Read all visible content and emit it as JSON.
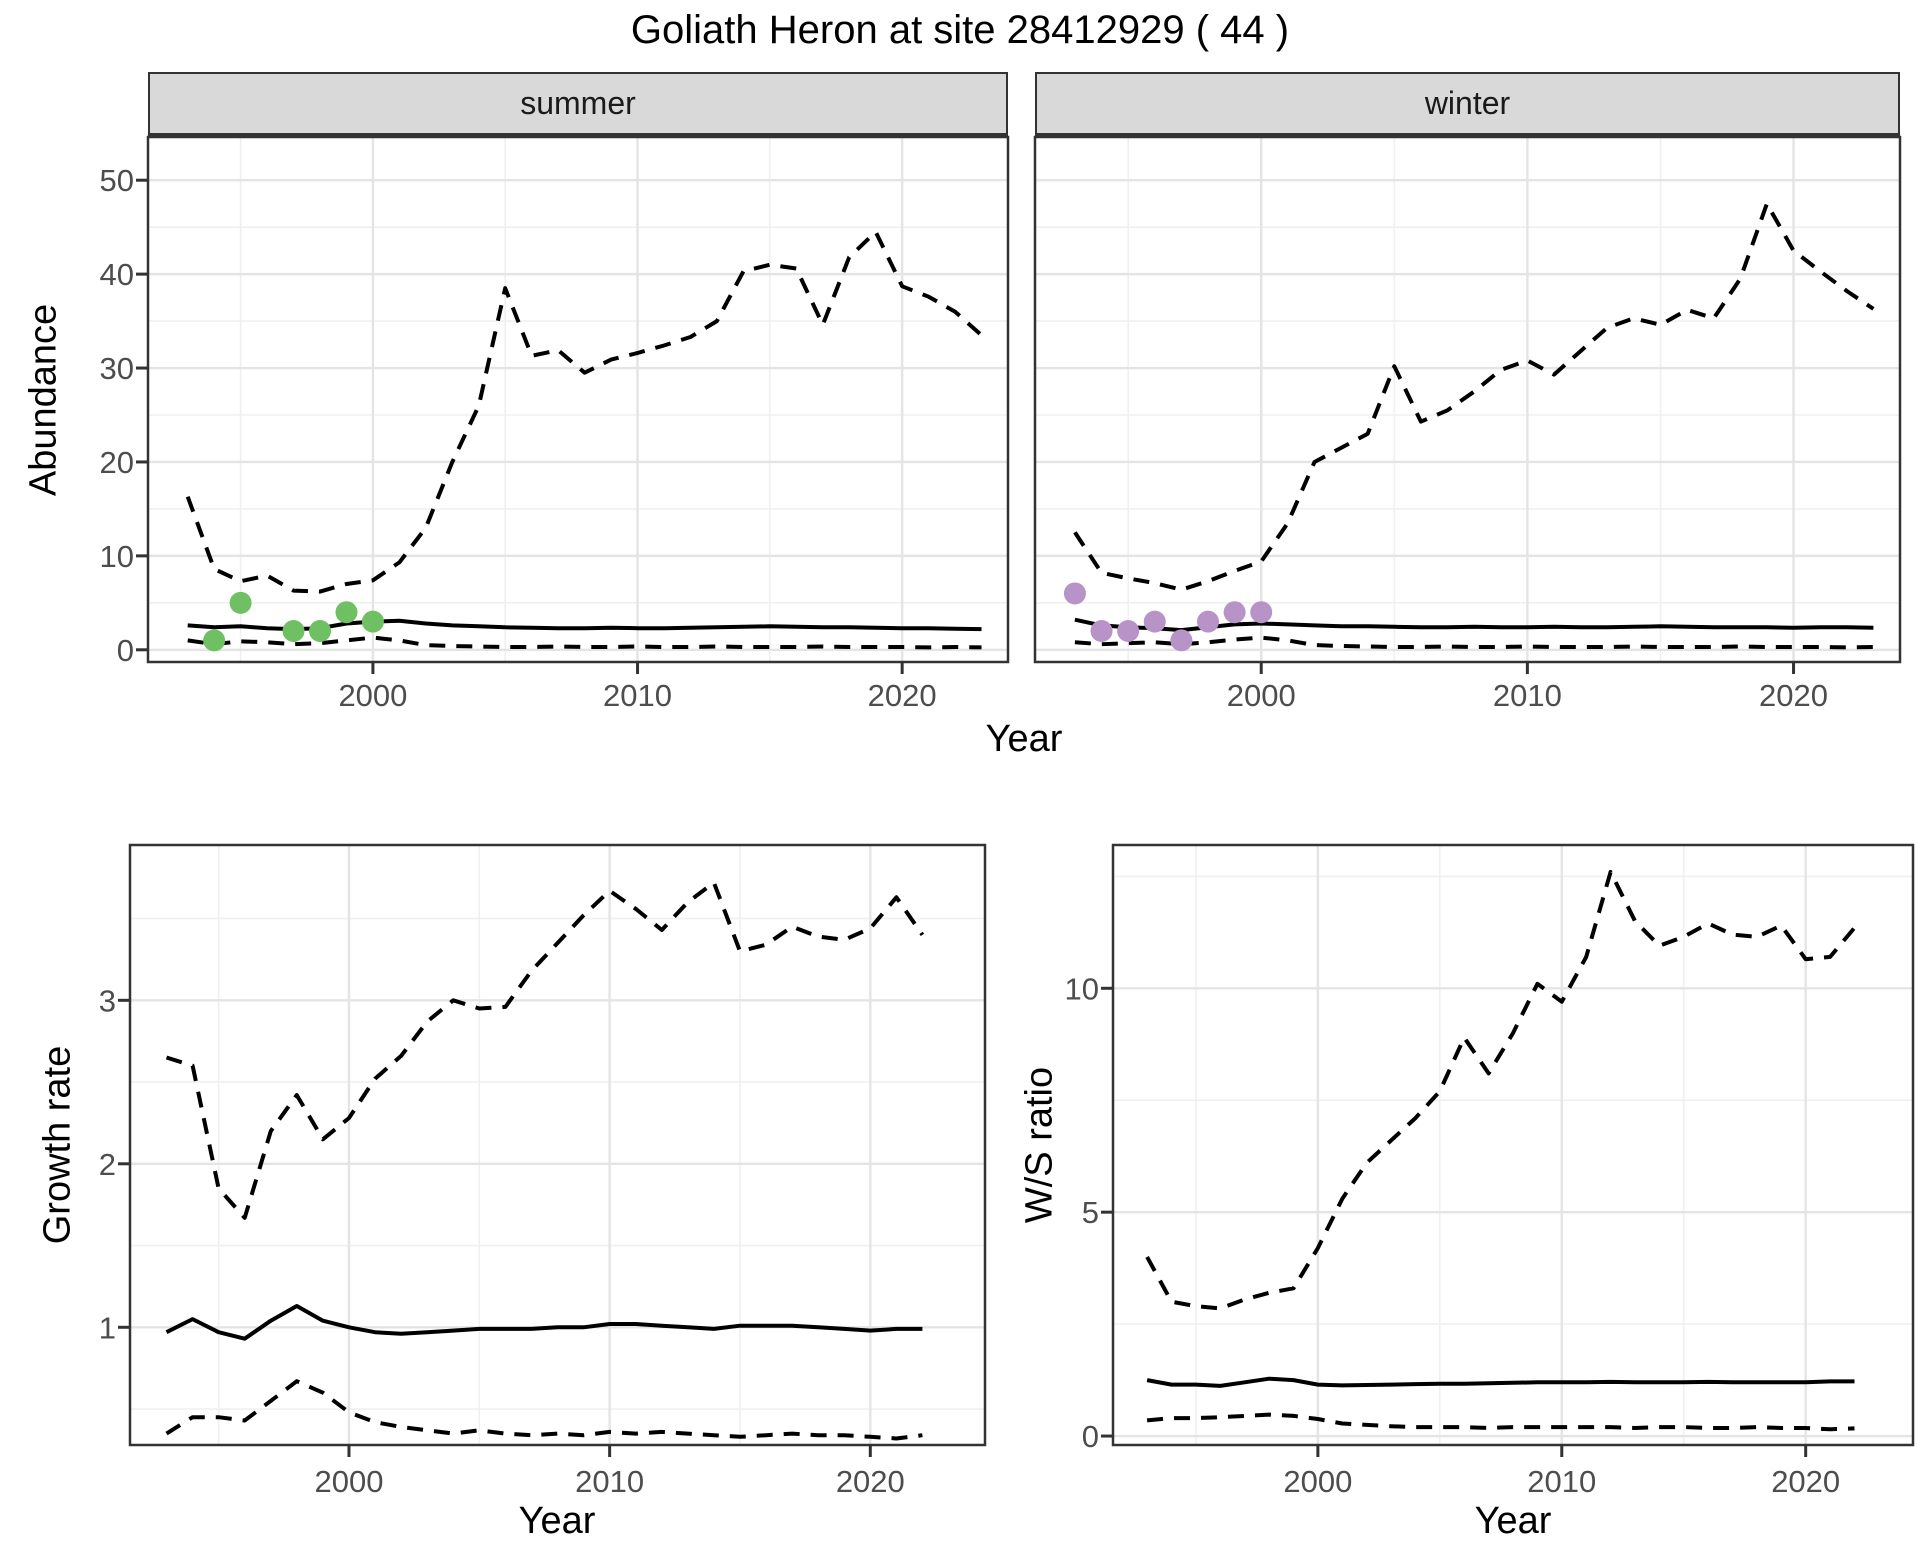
{
  "title": "Goliath Heron at site 28412929 ( 44 )",
  "facets": [
    "summer",
    "winter"
  ],
  "labels": {
    "abundance": "Abundance",
    "year": "Year",
    "growth": "Growth rate",
    "ws": "W/S ratio"
  },
  "colors": {
    "observation_summer": "#6fbf63",
    "observation_winter": "#b793c8",
    "line": "#000000",
    "strip_bg": "#d9d9d9",
    "grid_major": "#e4e4e4",
    "grid_minor": "#f0f0f0",
    "panel_border": "#333333",
    "tick_text": "#4d4d4d"
  },
  "chart_data": [
    {
      "id": "abundance-summer",
      "type": "line",
      "facet_label": "summer",
      "ylabel": "Abundance",
      "xlabel": "Year",
      "xlim": [
        1991.5,
        2024.0
      ],
      "ylim": [
        -1.3,
        54.6
      ],
      "x": [
        1993,
        1994,
        1995,
        1996,
        1997,
        1998,
        1999,
        2000,
        2001,
        2002,
        2003,
        2004,
        2005,
        2006,
        2007,
        2008,
        2009,
        2010,
        2011,
        2012,
        2013,
        2014,
        2015,
        2016,
        2017,
        2018,
        2019,
        2020,
        2021,
        2022,
        2023
      ],
      "series": [
        {
          "name": "upper_ci",
          "style": "dashed",
          "values": [
            16.3,
            8.6,
            7.3,
            7.9,
            6.3,
            6.2,
            7.0,
            7.4,
            9.3,
            13.0,
            20.0,
            26.0,
            38.5,
            31.3,
            31.9,
            29.5,
            30.9,
            31.6,
            32.4,
            33.3,
            35.0,
            40.3,
            41.0,
            40.6,
            34.6,
            41.8,
            44.5,
            38.7,
            37.6,
            36.0,
            33.5
          ]
        },
        {
          "name": "median",
          "style": "solid",
          "values": [
            2.6,
            2.4,
            2.5,
            2.3,
            2.2,
            2.3,
            2.8,
            3.0,
            3.1,
            2.8,
            2.6,
            2.5,
            2.4,
            2.35,
            2.3,
            2.3,
            2.35,
            2.3,
            2.3,
            2.35,
            2.4,
            2.45,
            2.5,
            2.45,
            2.4,
            2.4,
            2.35,
            2.3,
            2.3,
            2.25,
            2.2
          ]
        },
        {
          "name": "lower_ci",
          "style": "dashed",
          "values": [
            1.0,
            0.6,
            0.9,
            0.8,
            0.6,
            0.7,
            1.0,
            1.3,
            1.0,
            0.5,
            0.4,
            0.35,
            0.3,
            0.3,
            0.35,
            0.3,
            0.3,
            0.35,
            0.3,
            0.3,
            0.35,
            0.3,
            0.3,
            0.3,
            0.35,
            0.3,
            0.3,
            0.3,
            0.25,
            0.3,
            0.25
          ]
        }
      ],
      "points": {
        "name": "observations-summer",
        "color": "#6fbf63",
        "x": [
          1994,
          1995,
          1997,
          1998,
          1999,
          2000
        ],
        "y": [
          1,
          5,
          2,
          2,
          4,
          3
        ]
      },
      "x_ticks": {
        "major": [
          2000,
          2010,
          2020
        ],
        "minor": [
          1995,
          2005,
          2015
        ],
        "labels": [
          "2000",
          "2010",
          "2020"
        ]
      },
      "y_ticks": {
        "major": [
          0,
          10,
          20,
          30,
          40,
          50
        ],
        "minor": [
          5,
          15,
          25,
          35,
          45
        ],
        "labels": [
          "0",
          "10",
          "20",
          "30",
          "40",
          "50"
        ],
        "show_labels": true
      }
    },
    {
      "id": "abundance-winter",
      "type": "line",
      "facet_label": "winter",
      "ylabel": "Abundance",
      "xlabel": "Year",
      "xlim": [
        1991.5,
        2024.0
      ],
      "ylim": [
        -1.3,
        54.6
      ],
      "x": [
        1993,
        1994,
        1995,
        1996,
        1997,
        1998,
        1999,
        2000,
        2001,
        2002,
        2003,
        2004,
        2005,
        2006,
        2007,
        2008,
        2009,
        2010,
        2011,
        2012,
        2013,
        2014,
        2015,
        2016,
        2017,
        2018,
        2019,
        2020,
        2021,
        2022,
        2023
      ],
      "series": [
        {
          "name": "upper_ci",
          "style": "dashed",
          "values": [
            12.5,
            8.2,
            7.6,
            7.1,
            6.4,
            7.3,
            8.4,
            9.4,
            13.5,
            20.0,
            21.5,
            23.0,
            30.2,
            24.3,
            25.5,
            27.5,
            29.8,
            30.8,
            29.3,
            31.8,
            34.3,
            35.3,
            34.6,
            36.2,
            35.3,
            39.5,
            47.5,
            42.5,
            40.3,
            38.2,
            36.3
          ]
        },
        {
          "name": "median",
          "style": "solid",
          "values": [
            3.2,
            2.6,
            2.4,
            2.3,
            2.1,
            2.4,
            2.7,
            2.8,
            2.7,
            2.6,
            2.5,
            2.5,
            2.45,
            2.4,
            2.4,
            2.45,
            2.4,
            2.4,
            2.45,
            2.4,
            2.4,
            2.45,
            2.5,
            2.45,
            2.4,
            2.4,
            2.4,
            2.35,
            2.4,
            2.4,
            2.35
          ]
        },
        {
          "name": "lower_ci",
          "style": "dashed",
          "values": [
            0.8,
            0.6,
            0.7,
            0.8,
            0.6,
            0.8,
            1.1,
            1.3,
            1.0,
            0.5,
            0.4,
            0.35,
            0.3,
            0.3,
            0.35,
            0.3,
            0.3,
            0.35,
            0.3,
            0.3,
            0.3,
            0.35,
            0.3,
            0.3,
            0.3,
            0.35,
            0.3,
            0.3,
            0.3,
            0.25,
            0.3
          ]
        }
      ],
      "points": {
        "name": "observations-winter",
        "color": "#b793c8",
        "x": [
          1993,
          1994,
          1995,
          1996,
          1997,
          1998,
          1999,
          2000
        ],
        "y": [
          6,
          2,
          2,
          3,
          1,
          3,
          4,
          4
        ]
      },
      "x_ticks": {
        "major": [
          2000,
          2010,
          2020
        ],
        "minor": [
          1995,
          2005,
          2015
        ],
        "labels": [
          "2000",
          "2010",
          "2020"
        ]
      },
      "y_ticks": {
        "major": [
          0,
          10,
          20,
          30,
          40,
          50
        ],
        "minor": [
          5,
          15,
          25,
          35,
          45
        ],
        "labels": [
          "0",
          "10",
          "20",
          "30",
          "40",
          "50"
        ],
        "show_labels": false
      }
    },
    {
      "id": "growth-rate",
      "type": "line",
      "facet_label": "",
      "ylabel": "Growth rate",
      "xlabel": "Year",
      "xlim": [
        1991.6,
        2024.4
      ],
      "ylim": [
        0.28,
        3.95
      ],
      "x": [
        1993,
        1994,
        1995,
        1996,
        1997,
        1998,
        1999,
        2000,
        2001,
        2002,
        2003,
        2004,
        2005,
        2006,
        2007,
        2008,
        2009,
        2010,
        2011,
        2012,
        2013,
        2014,
        2015,
        2016,
        2017,
        2018,
        2019,
        2020,
        2021,
        2022
      ],
      "series": [
        {
          "name": "upper_ci",
          "style": "dashed",
          "values": [
            2.65,
            2.6,
            1.85,
            1.67,
            2.2,
            2.42,
            2.15,
            2.28,
            2.52,
            2.66,
            2.87,
            3.0,
            2.95,
            2.96,
            3.18,
            3.35,
            3.52,
            3.67,
            3.56,
            3.43,
            3.6,
            3.72,
            3.3,
            3.34,
            3.45,
            3.39,
            3.37,
            3.44,
            3.63,
            3.4
          ]
        },
        {
          "name": "median",
          "style": "solid",
          "values": [
            0.97,
            1.05,
            0.97,
            0.93,
            1.04,
            1.13,
            1.04,
            1.0,
            0.97,
            0.96,
            0.97,
            0.98,
            0.99,
            0.99,
            0.99,
            1.0,
            1.0,
            1.02,
            1.02,
            1.01,
            1.0,
            0.99,
            1.01,
            1.01,
            1.01,
            1.0,
            0.99,
            0.98,
            0.99,
            0.99
          ]
        },
        {
          "name": "lower_ci",
          "style": "dashed",
          "values": [
            0.35,
            0.45,
            0.45,
            0.43,
            0.55,
            0.67,
            0.6,
            0.48,
            0.42,
            0.39,
            0.37,
            0.35,
            0.37,
            0.35,
            0.34,
            0.35,
            0.34,
            0.36,
            0.35,
            0.36,
            0.35,
            0.34,
            0.33,
            0.34,
            0.35,
            0.34,
            0.34,
            0.33,
            0.32,
            0.34
          ]
        }
      ],
      "points": null,
      "x_ticks": {
        "major": [
          2000,
          2010,
          2020
        ],
        "minor": [
          1995,
          2005,
          2015
        ],
        "labels": [
          "2000",
          "2010",
          "2020"
        ]
      },
      "y_ticks": {
        "major": [
          1,
          2,
          3
        ],
        "minor": [
          0.5,
          1.5,
          2.5,
          3.5
        ],
        "labels": [
          "1",
          "2",
          "3"
        ],
        "show_labels": true
      }
    },
    {
      "id": "ws-ratio",
      "type": "line",
      "facet_label": "",
      "ylabel": "W/S ratio",
      "xlabel": "Year",
      "xlim": [
        1991.6,
        2024.4
      ],
      "ylim": [
        -0.2,
        13.2
      ],
      "x": [
        1993,
        1994,
        1995,
        1996,
        1997,
        1998,
        1999,
        2000,
        2001,
        2002,
        2003,
        2004,
        2005,
        2006,
        2007,
        2008,
        2009,
        2010,
        2011,
        2012,
        2013,
        2014,
        2015,
        2016,
        2017,
        2018,
        2019,
        2020,
        2021,
        2022
      ],
      "series": [
        {
          "name": "upper_ci",
          "style": "dashed",
          "values": [
            4.0,
            3.0,
            2.9,
            2.85,
            3.05,
            3.2,
            3.3,
            4.2,
            5.3,
            6.1,
            6.6,
            7.1,
            7.7,
            8.9,
            8.1,
            9.0,
            10.1,
            9.7,
            10.7,
            12.6,
            11.5,
            10.95,
            11.15,
            11.45,
            11.2,
            11.15,
            11.4,
            10.65,
            10.7,
            11.35
          ]
        },
        {
          "name": "median",
          "style": "solid",
          "values": [
            1.25,
            1.15,
            1.15,
            1.12,
            1.2,
            1.28,
            1.25,
            1.15,
            1.13,
            1.14,
            1.15,
            1.16,
            1.17,
            1.17,
            1.18,
            1.19,
            1.2,
            1.2,
            1.2,
            1.21,
            1.2,
            1.2,
            1.2,
            1.21,
            1.2,
            1.2,
            1.2,
            1.2,
            1.22,
            1.22
          ]
        },
        {
          "name": "lower_ci",
          "style": "dashed",
          "values": [
            0.35,
            0.4,
            0.4,
            0.42,
            0.45,
            0.48,
            0.45,
            0.38,
            0.28,
            0.25,
            0.22,
            0.2,
            0.2,
            0.2,
            0.18,
            0.2,
            0.2,
            0.2,
            0.2,
            0.2,
            0.18,
            0.2,
            0.2,
            0.18,
            0.18,
            0.2,
            0.18,
            0.18,
            0.15,
            0.17
          ]
        }
      ],
      "points": null,
      "x_ticks": {
        "major": [
          2000,
          2010,
          2020
        ],
        "minor": [
          1995,
          2005,
          2015
        ],
        "labels": [
          "2000",
          "2010",
          "2020"
        ]
      },
      "y_ticks": {
        "major": [
          0,
          5,
          10
        ],
        "minor": [
          2.5,
          7.5,
          12.5
        ],
        "labels": [
          "0",
          "5",
          "10"
        ],
        "show_labels": true
      }
    }
  ]
}
